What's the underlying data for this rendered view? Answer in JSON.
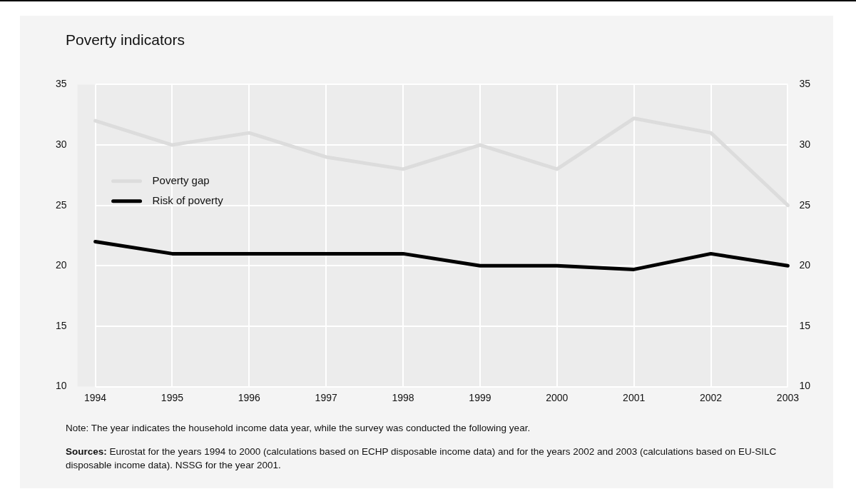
{
  "chart_data": {
    "type": "line",
    "title": "Poverty indicators",
    "categories": [
      "1994",
      "1995",
      "1996",
      "1997",
      "1998",
      "1999",
      "2000",
      "2001",
      "2002",
      "2003"
    ],
    "series": [
      {
        "name": "Poverty gap",
        "color": "#dcdcdc",
        "values": [
          32,
          30,
          31,
          29,
          28,
          30,
          28,
          32.2,
          31,
          25
        ]
      },
      {
        "name": "Risk of poverty",
        "color": "#000000",
        "values": [
          22,
          21,
          21,
          21,
          21,
          20,
          20,
          19.7,
          21,
          20
        ]
      }
    ],
    "ylim": [
      10,
      35
    ],
    "yticks": [
      10,
      15,
      20,
      25,
      30,
      35
    ],
    "y2lim": [
      10,
      35
    ],
    "y2ticks": [
      10,
      15,
      20,
      25,
      30,
      35
    ],
    "grid": true,
    "legend": "left",
    "marker": "none",
    "line_style": "solid",
    "annotations": [
      "Note: The year indicates the household income data year, while the  survey was conducted the following year.",
      "Sources: Eurostat for the years 1994 to 2000 (calculations based on ECHP disposable income data) and for the years 2002 and 2003 (calculations based on EU-SILC disposable income data). NSSG for the year 2001."
    ]
  }
}
